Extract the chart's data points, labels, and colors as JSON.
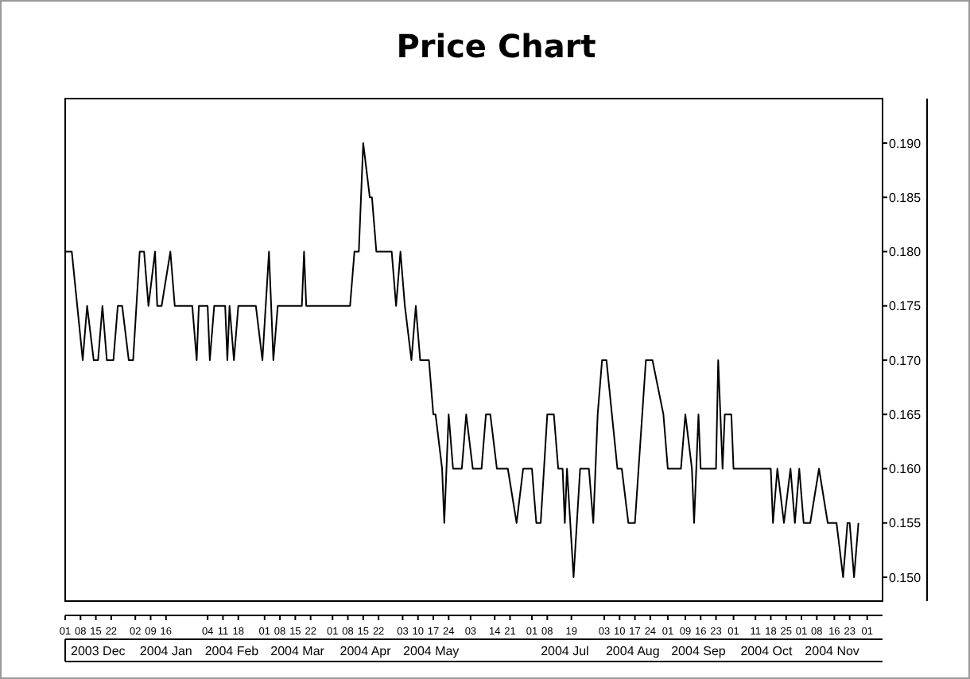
{
  "chart_data": {
    "type": "line",
    "title": "Price Chart",
    "x": [
      "2003-12-01",
      "2003-12-04",
      "2003-12-09",
      "2003-12-11",
      "2003-12-14",
      "2003-12-16",
      "2003-12-18",
      "2003-12-20",
      "2003-12-23",
      "2003-12-25",
      "2003-12-27",
      "2003-12-30",
      "2004-01-01",
      "2004-01-04",
      "2004-01-06",
      "2004-01-08",
      "2004-01-11",
      "2004-01-12",
      "2004-01-14",
      "2004-01-18",
      "2004-01-20",
      "2004-01-28",
      "2004-01-30",
      "2004-01-31",
      "2004-02-04",
      "2004-02-05",
      "2004-02-07",
      "2004-02-12",
      "2004-02-13",
      "2004-02-14",
      "2004-02-16",
      "2004-02-18",
      "2004-02-26",
      "2004-02-29",
      "2004-03-03",
      "2004-03-05",
      "2004-03-07",
      "2004-03-18",
      "2004-03-19",
      "2004-03-20",
      "2004-04-09",
      "2004-04-11",
      "2004-04-13",
      "2004-04-15",
      "2004-04-18",
      "2004-04-19",
      "2004-04-21",
      "2004-04-28",
      "2004-04-30",
      "2004-05-02",
      "2004-05-04",
      "2004-05-07",
      "2004-05-09",
      "2004-05-11",
      "2004-05-15",
      "2004-05-17",
      "2004-05-18",
      "2004-05-21",
      "2004-05-22",
      "2004-05-24",
      "2004-05-26",
      "2004-05-30",
      "2004-06-01",
      "2004-06-04",
      "2004-06-08",
      "2004-06-10",
      "2004-06-12",
      "2004-06-15",
      "2004-06-20",
      "2004-06-24",
      "2004-06-27",
      "2004-07-01",
      "2004-07-03",
      "2004-07-05",
      "2004-07-08",
      "2004-07-11",
      "2004-07-13",
      "2004-07-15",
      "2004-07-16",
      "2004-07-17",
      "2004-07-20",
      "2004-07-23",
      "2004-07-27",
      "2004-07-29",
      "2004-07-31",
      "2004-08-02",
      "2004-08-04",
      "2004-08-09",
      "2004-08-11",
      "2004-08-14",
      "2004-08-17",
      "2004-08-22",
      "2004-08-25",
      "2004-08-30",
      "2004-09-01",
      "2004-09-07",
      "2004-09-09",
      "2004-09-12",
      "2004-09-13",
      "2004-09-15",
      "2004-09-16",
      "2004-09-23",
      "2004-09-24",
      "2004-09-26",
      "2004-09-27",
      "2004-09-30",
      "2004-10-01",
      "2004-10-18",
      "2004-10-19",
      "2004-10-21",
      "2004-10-24",
      "2004-10-27",
      "2004-10-29",
      "2004-10-31",
      "2004-11-02",
      "2004-11-05",
      "2004-11-09",
      "2004-11-13",
      "2004-11-17",
      "2004-11-20",
      "2004-11-22",
      "2004-11-23",
      "2004-11-25",
      "2004-11-27"
    ],
    "series": [
      {
        "color": "#000000",
        "values": [
          0.18,
          0.18,
          0.17,
          0.175,
          0.17,
          0.17,
          0.175,
          0.17,
          0.17,
          0.175,
          0.175,
          0.17,
          0.17,
          0.18,
          0.18,
          0.175,
          0.18,
          0.175,
          0.175,
          0.18,
          0.175,
          0.175,
          0.17,
          0.175,
          0.175,
          0.17,
          0.175,
          0.175,
          0.17,
          0.175,
          0.17,
          0.175,
          0.175,
          0.17,
          0.18,
          0.17,
          0.175,
          0.175,
          0.18,
          0.175,
          0.175,
          0.18,
          0.18,
          0.19,
          0.185,
          0.185,
          0.18,
          0.18,
          0.175,
          0.18,
          0.175,
          0.17,
          0.175,
          0.17,
          0.17,
          0.165,
          0.165,
          0.16,
          0.155,
          0.165,
          0.16,
          0.16,
          0.165,
          0.16,
          0.16,
          0.165,
          0.165,
          0.16,
          0.16,
          0.155,
          0.16,
          0.16,
          0.155,
          0.155,
          0.165,
          0.165,
          0.16,
          0.16,
          0.155,
          0.16,
          0.15,
          0.16,
          0.16,
          0.155,
          0.165,
          0.17,
          0.17,
          0.16,
          0.16,
          0.155,
          0.155,
          0.17,
          0.17,
          0.165,
          0.16,
          0.16,
          0.165,
          0.16,
          0.155,
          0.165,
          0.16,
          0.16,
          0.17,
          0.16,
          0.165,
          0.165,
          0.16,
          0.16,
          0.155,
          0.16,
          0.155,
          0.16,
          0.155,
          0.16,
          0.155,
          0.155,
          0.16,
          0.155,
          0.155,
          0.15,
          0.155,
          0.155,
          0.15,
          0.155
        ]
      }
    ],
    "xlim": [
      "2003-12-01",
      "2004-12-08"
    ],
    "xticks": [
      {
        "value": "2003-12-01",
        "label": "01"
      },
      {
        "value": "2003-12-08",
        "label": "08"
      },
      {
        "value": "2003-12-15",
        "label": "15"
      },
      {
        "value": "2003-12-22",
        "label": "22"
      },
      {
        "value": "2004-01-02",
        "label": "02"
      },
      {
        "value": "2004-01-09",
        "label": "09"
      },
      {
        "value": "2004-01-16",
        "label": "16"
      },
      {
        "value": "2004-02-04",
        "label": "04"
      },
      {
        "value": "2004-02-11",
        "label": "11"
      },
      {
        "value": "2004-02-18",
        "label": "18"
      },
      {
        "value": "2004-03-01",
        "label": "01"
      },
      {
        "value": "2004-03-08",
        "label": "08"
      },
      {
        "value": "2004-03-15",
        "label": "15"
      },
      {
        "value": "2004-03-22",
        "label": "22"
      },
      {
        "value": "2004-04-01",
        "label": "01"
      },
      {
        "value": "2004-04-08",
        "label": "08"
      },
      {
        "value": "2004-04-15",
        "label": "15"
      },
      {
        "value": "2004-04-22",
        "label": "22"
      },
      {
        "value": "2004-05-03",
        "label": "03"
      },
      {
        "value": "2004-05-10",
        "label": "10"
      },
      {
        "value": "2004-05-17",
        "label": "17"
      },
      {
        "value": "2004-05-24",
        "label": "24"
      },
      {
        "value": "2004-06-03",
        "label": "03"
      },
      {
        "value": "2004-06-14",
        "label": "14"
      },
      {
        "value": "2004-06-21",
        "label": "21"
      },
      {
        "value": "2004-07-01",
        "label": "01"
      },
      {
        "value": "2004-07-08",
        "label": "08"
      },
      {
        "value": "2004-07-19",
        "label": "19"
      },
      {
        "value": "2004-08-03",
        "label": "03"
      },
      {
        "value": "2004-08-10",
        "label": "10"
      },
      {
        "value": "2004-08-17",
        "label": "17"
      },
      {
        "value": "2004-08-24",
        "label": "24"
      },
      {
        "value": "2004-09-01",
        "label": "01"
      },
      {
        "value": "2004-09-09",
        "label": "09"
      },
      {
        "value": "2004-09-16",
        "label": "16"
      },
      {
        "value": "2004-09-23",
        "label": "23"
      },
      {
        "value": "2004-10-01",
        "label": "01"
      },
      {
        "value": "2004-10-11",
        "label": "11"
      },
      {
        "value": "2004-10-18",
        "label": "18"
      },
      {
        "value": "2004-10-25",
        "label": "25"
      },
      {
        "value": "2004-11-01",
        "label": "01"
      },
      {
        "value": "2004-11-08",
        "label": "08"
      },
      {
        "value": "2004-11-16",
        "label": "16"
      },
      {
        "value": "2004-11-23",
        "label": "23"
      },
      {
        "value": "2004-12-01",
        "label": "01"
      }
    ],
    "x2lim": [
      "2003-12-01",
      "2004-12-08"
    ],
    "x2ticks": [
      {
        "value": "2003-12-16",
        "label": "2003 Dec"
      },
      {
        "value": "2004-01-16",
        "label": "2004 Jan"
      },
      {
        "value": "2004-02-15",
        "label": "2004 Feb"
      },
      {
        "value": "2004-03-16",
        "label": "2004 Mar"
      },
      {
        "value": "2004-04-16",
        "label": "2004 Apr"
      },
      {
        "value": "2004-05-16",
        "label": "2004 May"
      },
      {
        "value": "2004-07-16",
        "label": "2004 Jul"
      },
      {
        "value": "2004-08-16",
        "label": "2004 Aug"
      },
      {
        "value": "2004-09-15",
        "label": "2004 Sep"
      },
      {
        "value": "2004-10-16",
        "label": "2004 Oct"
      },
      {
        "value": "2004-11-15",
        "label": "2004 Nov"
      }
    ],
    "ylim": [
      0.1478,
      0.1941
    ],
    "yticks": [
      {
        "value": 0.15,
        "label": "0.150"
      },
      {
        "value": 0.155,
        "label": "0.155"
      },
      {
        "value": 0.16,
        "label": "0.160"
      },
      {
        "value": 0.165,
        "label": "0.165"
      },
      {
        "value": 0.17,
        "label": "0.170"
      },
      {
        "value": 0.175,
        "label": "0.175"
      },
      {
        "value": 0.18,
        "label": "0.180"
      },
      {
        "value": 0.185,
        "label": "0.185"
      },
      {
        "value": 0.19,
        "label": "0.190"
      }
    ],
    "grid": false
  }
}
